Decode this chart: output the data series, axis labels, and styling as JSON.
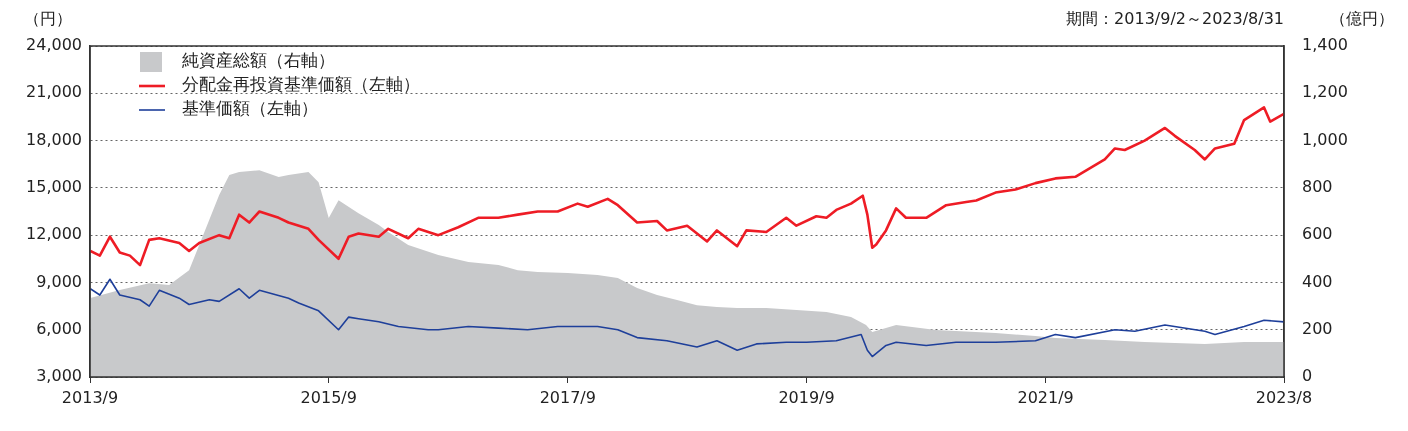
{
  "chart_data": {
    "type": "line",
    "ylabel": "（円）",
    "y2label": "（億円）",
    "annotations": [
      "期間：2013/9/2～2023/8/31"
    ],
    "xlim": [
      "2013-09",
      "2023-08-31"
    ],
    "xticks": [
      {
        "value": "2013-09",
        "label": "2013/9"
      },
      {
        "value": "2015-09",
        "label": "2015/9"
      },
      {
        "value": "2017-09",
        "label": "2017/9"
      },
      {
        "value": "2019-09",
        "label": "2019/9"
      },
      {
        "value": "2021-09",
        "label": "2021/9"
      },
      {
        "value": "2023-08-31",
        "label": "2023/8"
      }
    ],
    "ylim": [
      3000,
      24000
    ],
    "yticks": [
      {
        "value": 3000,
        "label": "3,000"
      },
      {
        "value": 6000,
        "label": "6,000"
      },
      {
        "value": 9000,
        "label": "9,000"
      },
      {
        "value": 12000,
        "label": "12,000"
      },
      {
        "value": 15000,
        "label": "15,000"
      },
      {
        "value": 18000,
        "label": "18,000"
      },
      {
        "value": 21000,
        "label": "21,000"
      },
      {
        "value": 24000,
        "label": "24,000"
      }
    ],
    "y2lim": [
      0,
      1400
    ],
    "y2ticks": [
      0,
      200,
      400,
      600,
      800,
      {
        "value": 1000,
        "label": "1,000"
      },
      {
        "value": 1200,
        "label": "1,200"
      },
      {
        "value": 1400,
        "label": "1,400"
      }
    ],
    "grid": "y",
    "legend": "top left",
    "marker": "none",
    "line_style": "solid",
    "series": [
      {
        "name": "純資産総額（右軸）",
        "type": "area",
        "axis": "y2",
        "color": "#c8c9cb",
        "x": [
          "2013-09-02",
          "2013-12",
          "2014-03",
          "2014-05",
          "2014-07",
          "2014-08",
          "2014-10",
          "2014-11",
          "2014-12",
          "2015-02",
          "2015-04",
          "2015-05",
          "2015-07",
          "2015-08",
          "2015-09",
          "2015-10",
          "2015-12",
          "2016-02",
          "2016-03",
          "2016-05",
          "2016-08",
          "2016-11",
          "2017-02",
          "2017-04",
          "2017-06",
          "2017-09",
          "2017-12",
          "2018-02",
          "2018-04",
          "2018-06",
          "2018-08",
          "2018-10",
          "2018-12",
          "2019-02",
          "2019-05",
          "2019-08",
          "2019-11",
          "2020-01-15",
          "2020-03-01",
          "2020-03-20",
          "2020-06",
          "2020-10",
          "2021-04",
          "2021-08",
          "2021-10",
          "2022-03",
          "2022-07",
          "2023-01",
          "2023-05",
          "2023-08-31"
        ],
        "values": [
          334,
          368,
          397,
          389,
          452,
          558,
          770,
          854,
          867,
          875,
          846,
          854,
          867,
          824,
          672,
          748,
          693,
          643,
          613,
          558,
          516,
          486,
          474,
          452,
          444,
          440,
          431,
          419,
          376,
          347,
          326,
          304,
          296,
          292,
          292,
          283,
          275,
          254,
          220,
          190,
          220,
          199,
          186,
          173,
          165,
          156,
          148,
          140,
          148,
          148
        ]
      },
      {
        "name": "分配金再投資基準価額（左軸）",
        "type": "line",
        "color": "#ee1c25",
        "x": [
          "2013-09-02",
          "2013-10",
          "2013-11",
          "2013-12",
          "2014-01",
          "2014-02",
          "2014-03",
          "2014-04",
          "2014-06",
          "2014-07",
          "2014-08",
          "2014-10",
          "2014-11",
          "2014-12",
          "2015-01",
          "2015-02",
          "2015-04",
          "2015-05",
          "2015-07",
          "2015-08",
          "2015-10",
          "2015-11",
          "2015-12",
          "2016-02",
          "2016-03",
          "2016-05",
          "2016-06",
          "2016-08",
          "2016-10",
          "2016-12",
          "2017-02",
          "2017-04",
          "2017-06",
          "2017-08",
          "2017-10",
          "2017-11",
          "2018-01",
          "2018-02",
          "2018-04",
          "2018-06",
          "2018-07",
          "2018-09",
          "2018-11",
          "2018-12",
          "2019-02",
          "2019-03",
          "2019-05",
          "2019-07",
          "2019-08",
          "2019-10",
          "2019-11",
          "2019-12",
          "2020-01-15",
          "2020-02-20",
          "2020-03-05",
          "2020-03-20",
          "2020-04-01",
          "2020-05",
          "2020-06",
          "2020-07",
          "2020-09",
          "2020-11",
          "2021-01",
          "2021-02",
          "2021-04",
          "2021-06",
          "2021-08",
          "2021-10",
          "2021-12",
          "2022-03",
          "2022-04",
          "2022-05",
          "2022-07",
          "2022-09",
          "2022-10",
          "2022-12",
          "2023-01",
          "2023-02",
          "2023-04",
          "2023-05",
          "2023-07-01",
          "2023-07-20",
          "2023-08-31"
        ],
        "values": [
          11000,
          10700,
          11900,
          10900,
          10700,
          10100,
          11700,
          11800,
          11500,
          11000,
          11500,
          12000,
          11800,
          13300,
          12800,
          13500,
          13100,
          12800,
          12400,
          11700,
          10500,
          11900,
          12100,
          11900,
          12400,
          11800,
          12400,
          12000,
          12500,
          13100,
          13100,
          13300,
          13500,
          13500,
          14000,
          13800,
          14300,
          13900,
          12800,
          12900,
          12300,
          12600,
          11600,
          12300,
          11300,
          12300,
          12200,
          13100,
          12600,
          13200,
          13100,
          13600,
          14000,
          14500,
          13300,
          11200,
          11400,
          12300,
          13700,
          13100,
          13100,
          13900,
          14100,
          14200,
          14700,
          14900,
          15300,
          15600,
          15700,
          16800,
          17500,
          17400,
          18000,
          18800,
          18300,
          17400,
          16800,
          17500,
          17800,
          19300,
          20100,
          19200,
          19700
        ]
      },
      {
        "name": "基準価額（左軸）",
        "type": "line",
        "color": "#1e3f9a",
        "x": [
          "2013-09-02",
          "2013-10",
          "2013-11",
          "2013-12",
          "2014-02",
          "2014-03",
          "2014-04",
          "2014-06",
          "2014-07",
          "2014-09",
          "2014-10",
          "2014-12",
          "2015-01",
          "2015-02",
          "2015-05",
          "2015-06",
          "2015-08",
          "2015-10",
          "2015-11",
          "2015-12",
          "2016-02",
          "2016-04",
          "2016-07",
          "2016-08",
          "2016-11",
          "2017-02",
          "2017-05",
          "2017-08",
          "2017-12",
          "2018-02",
          "2018-04",
          "2018-07",
          "2018-10",
          "2018-12",
          "2019-02",
          "2019-04",
          "2019-07",
          "2019-09",
          "2019-12",
          "2020-02-15",
          "2020-03-05",
          "2020-03-20",
          "2020-05",
          "2020-06",
          "2020-09",
          "2020-12",
          "2021-04",
          "2021-08",
          "2021-10",
          "2021-12",
          "2022-04",
          "2022-06",
          "2022-09",
          "2023-01",
          "2023-02",
          "2023-05",
          "2023-07",
          "2023-08-31"
        ],
        "values": [
          8600,
          8200,
          9200,
          8200,
          7900,
          7500,
          8500,
          8000,
          7600,
          7900,
          7800,
          8600,
          8000,
          8500,
          8000,
          7700,
          7200,
          6000,
          6800,
          6700,
          6500,
          6200,
          6000,
          6000,
          6200,
          6100,
          6000,
          6200,
          6200,
          6000,
          5500,
          5300,
          4900,
          5300,
          4700,
          5100,
          5200,
          5200,
          5300,
          5700,
          4700,
          4300,
          5000,
          5200,
          5000,
          5200,
          5200,
          5300,
          5700,
          5500,
          6000,
          5900,
          6300,
          5900,
          5700,
          6200,
          6600,
          6500
        ]
      }
    ]
  }
}
